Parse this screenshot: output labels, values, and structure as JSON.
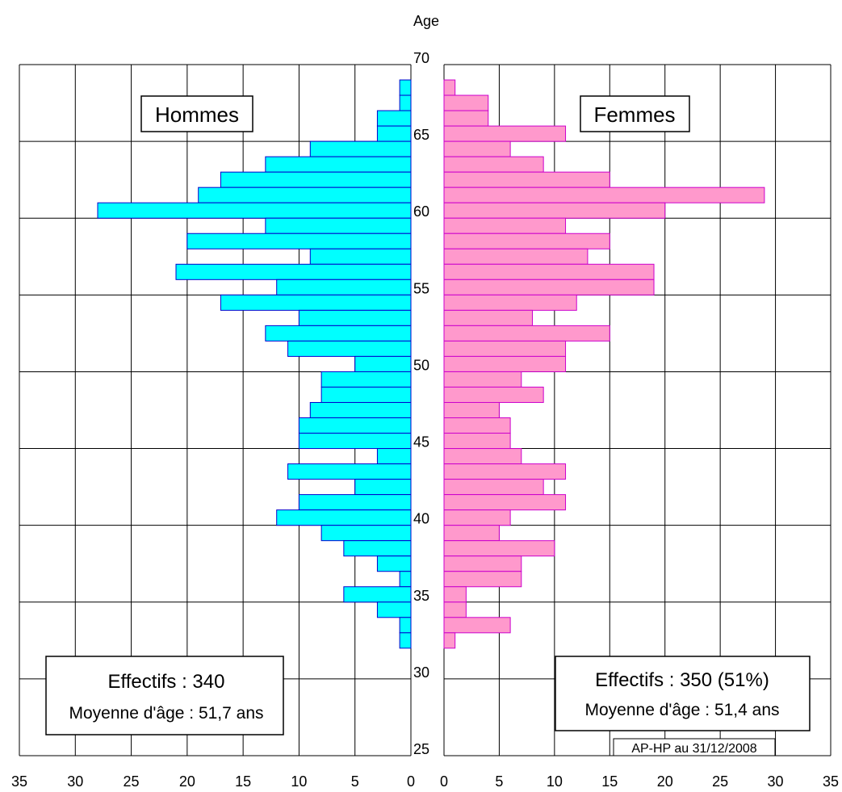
{
  "chart_data": {
    "type": "bar",
    "subtype": "population-pyramid",
    "title": "",
    "center_axis_label": "Age",
    "age_ticks": [
      70,
      65,
      60,
      55,
      50,
      45,
      40,
      35,
      30,
      25
    ],
    "x_ticks": [
      35,
      30,
      25,
      20,
      15,
      10,
      5,
      0
    ],
    "x_range": [
      0,
      35
    ],
    "y_range": [
      25,
      70
    ],
    "grid": true,
    "ages": [
      68,
      67,
      66,
      65,
      64,
      63,
      62,
      61,
      60,
      59,
      58,
      57,
      56,
      55,
      54,
      53,
      52,
      51,
      50,
      49,
      48,
      47,
      46,
      45,
      44,
      43,
      42,
      41,
      40,
      39,
      38,
      37,
      36,
      35,
      34,
      33,
      32,
      31
    ],
    "series": [
      {
        "name": "Hommes",
        "side": "left",
        "color": "#00FFFF",
        "values": [
          1,
          1,
          3,
          3,
          9,
          13,
          17,
          19,
          28,
          13,
          20,
          9,
          21,
          12,
          17,
          10,
          13,
          11,
          5,
          8,
          8,
          9,
          10,
          10,
          3,
          11,
          5,
          10,
          12,
          8,
          6,
          3,
          1,
          6,
          3,
          1,
          1,
          0
        ]
      },
      {
        "name": "Femmes",
        "side": "right",
        "color": "#FF99CC",
        "values": [
          1,
          4,
          4,
          11,
          6,
          9,
          15,
          29,
          20,
          11,
          15,
          13,
          19,
          19,
          12,
          8,
          15,
          11,
          11,
          7,
          9,
          5,
          6,
          6,
          7,
          11,
          9,
          11,
          6,
          5,
          10,
          7,
          7,
          2,
          2,
          6,
          1,
          0
        ]
      }
    ],
    "annotations": {
      "hommes_label": "Hommes",
      "femmes_label": "Femmes",
      "hommes_effectifs": "Effectifs : 340",
      "hommes_moyenne": "Moyenne d'âge : 51,7 ans",
      "femmes_effectifs": "Effectifs : 350 (51%)",
      "femmes_moyenne": "Moyenne d'âge : 51,4 ans",
      "source": "AP-HP au 31/12/2008"
    },
    "colors": {
      "hommes_fill": "#00FFFF",
      "hommes_stroke": "#0000CC",
      "femmes_fill": "#FF99CC",
      "femmes_stroke": "#CC00CC"
    }
  }
}
